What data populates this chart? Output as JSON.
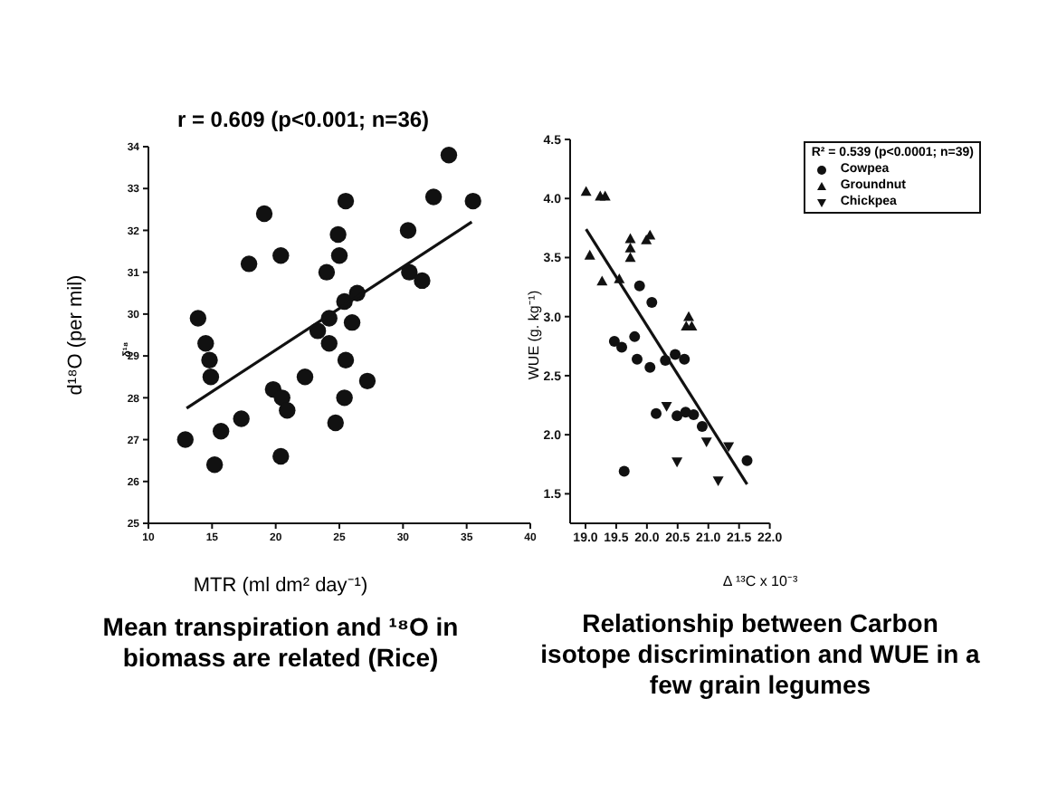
{
  "chart_data": [
    {
      "type": "scatter",
      "title": "r = 0.609 (p<0.001; n=36)",
      "xlabel": "MTR (ml dm² day⁻¹)",
      "ylabel": "d¹⁸O (per mil)",
      "annotations": [
        "Mean transpiration and ¹⁸O in biomass are related (Rice)",
        "δ¹⁸"
      ],
      "xlim": [
        10,
        40
      ],
      "xticks": [
        10,
        15,
        20,
        25,
        30,
        35,
        40
      ],
      "ylim": [
        25,
        34
      ],
      "yticks": [
        25,
        26,
        27,
        28,
        29,
        30,
        31,
        32,
        33,
        34
      ],
      "legend": false,
      "series": [
        {
          "marker": "circle",
          "color": "#111111",
          "x": [
            12.9,
            13.9,
            14.5,
            14.8,
            14.9,
            15.2,
            15.7,
            17.3,
            17.9,
            19.1,
            19.8,
            20.4,
            20.5,
            20.4,
            20.9,
            22.3,
            23.3,
            24.0,
            24.2,
            24.2,
            24.9,
            25.0,
            24.7,
            25.4,
            25.5,
            25.4,
            25.5,
            26.0,
            26.4,
            27.2,
            30.4,
            30.5,
            31.5,
            32.4,
            33.6,
            35.5
          ],
          "values": [
            27.0,
            29.9,
            29.3,
            28.9,
            28.5,
            26.4,
            27.2,
            27.5,
            31.2,
            32.4,
            28.2,
            31.4,
            28.0,
            26.6,
            27.7,
            28.5,
            29.6,
            31.0,
            29.9,
            29.3,
            31.9,
            31.4,
            27.4,
            28.0,
            32.7,
            30.3,
            28.9,
            29.8,
            30.5,
            28.4,
            32.0,
            31.0,
            30.8,
            32.8,
            33.8,
            32.7
          ]
        },
        {
          "type": "line",
          "color": "#111111",
          "x": [
            13.0,
            35.4
          ],
          "values": [
            27.75,
            32.2
          ]
        }
      ]
    },
    {
      "type": "scatter",
      "xlabel": "Δ ¹³C x 10⁻³",
      "ylabel": "WUE (g. kg⁻¹)",
      "legend_title": "R² = 0.539 (p<0.0001; n=39)",
      "annotations": [
        "Relationship between Carbon isotope discrimination  and WUE in a few grain legumes"
      ],
      "xlim": [
        18.75,
        22
      ],
      "xticks": [
        {
          "value": 19,
          "label": "19.0"
        },
        19.5,
        {
          "value": 20,
          "label": "20.0"
        },
        20.5,
        {
          "value": 21,
          "label": "21.0"
        },
        21.5,
        {
          "value": 22,
          "label": "22.0"
        }
      ],
      "ylim": [
        1.25,
        4.5
      ],
      "yticks": [
        1.5,
        {
          "value": 2,
          "label": "2.0"
        },
        2.5,
        {
          "value": 3,
          "label": "3.0"
        },
        3.5,
        {
          "value": 4,
          "label": "4.0"
        },
        4.5
      ],
      "legend": "top right",
      "series": [
        {
          "name": "Cowpea",
          "marker": "circle",
          "color": "#111111",
          "x": [
            19.59,
            19.47,
            19.8,
            19.84,
            19.63,
            19.88,
            20.08,
            20.05,
            20.15,
            20.3,
            20.46,
            20.49,
            20.61,
            20.63,
            20.76,
            20.9,
            21.63
          ],
          "values": [
            2.74,
            2.79,
            2.83,
            2.64,
            1.69,
            3.26,
            3.12,
            2.57,
            2.18,
            2.63,
            2.68,
            2.16,
            2.64,
            2.19,
            2.17,
            2.07,
            1.78
          ]
        },
        {
          "name": "Groundnut",
          "marker": "triangle",
          "color": "#111111",
          "x": [
            19.01,
            19.07,
            19.24,
            19.32,
            19.27,
            19.55,
            19.73,
            19.73,
            19.73,
            19.99,
            20.05,
            20.64,
            20.68,
            20.73
          ],
          "values": [
            4.06,
            3.52,
            4.02,
            4.02,
            3.3,
            3.32,
            3.66,
            3.58,
            3.5,
            3.65,
            3.69,
            2.92,
            3.0,
            2.92
          ]
        },
        {
          "name": "Chickpea",
          "marker": "triangle-down",
          "color": "#111111",
          "x": [
            20.32,
            20.49,
            20.97,
            21.16,
            21.33
          ],
          "values": [
            2.24,
            1.77,
            1.94,
            1.61,
            1.9
          ]
        },
        {
          "type": "line",
          "color": "#111111",
          "x": [
            19.01,
            21.63
          ],
          "values": [
            3.74,
            1.58
          ]
        }
      ]
    }
  ]
}
